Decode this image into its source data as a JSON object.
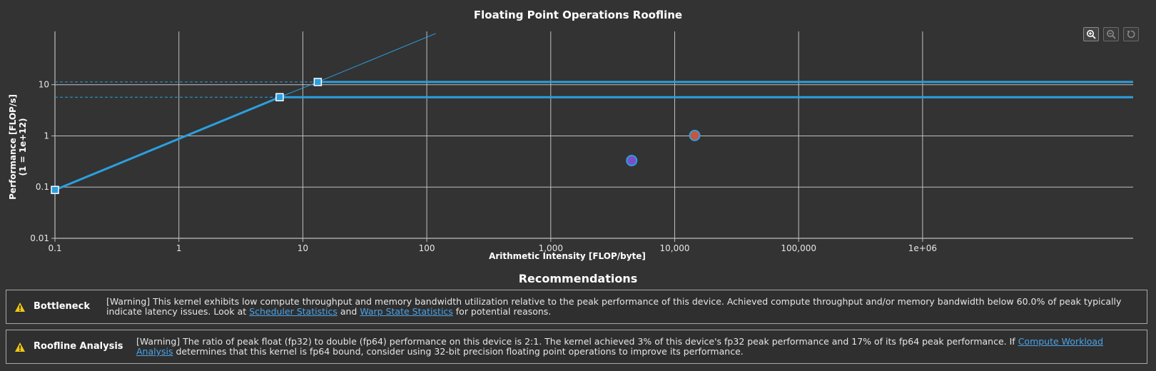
{
  "chart_data": {
    "type": "scatter",
    "title": "Floating Point Operations Roofline",
    "xlabel": "Arithmetic Intensity [FLOP/byte]",
    "ylabel": "Performance [FLOP/s]",
    "ylabel_unit": "(1 = 1e+12)",
    "x_scale": "log",
    "y_scale": "log",
    "xlim": [
      0.1,
      50000000
    ],
    "ylim": [
      0.01,
      110
    ],
    "x_ticks": [
      {
        "value": 0.1,
        "label": "0.1"
      },
      {
        "value": 1,
        "label": "1"
      },
      {
        "value": 10,
        "label": "10"
      },
      {
        "value": 100,
        "label": "100"
      },
      {
        "value": 1000,
        "label": "1,000"
      },
      {
        "value": 10000,
        "label": "10,000"
      },
      {
        "value": 100000,
        "label": "100,000"
      },
      {
        "value": 1000000,
        "label": "1e+06"
      }
    ],
    "y_ticks": [
      {
        "value": 0.01,
        "label": "0.01"
      },
      {
        "value": 0.1,
        "label": "0.1"
      },
      {
        "value": 1,
        "label": "1"
      },
      {
        "value": 10,
        "label": "10"
      }
    ],
    "grid": true,
    "roofline": {
      "color": "#2b9fe0",
      "bandwidth_points": [
        [
          0.1,
          0.088
        ],
        [
          6.5,
          5.7
        ]
      ],
      "bandwidth_extension_end": [
        118,
        100
      ],
      "ridge_points": [
        {
          "x": 6.5,
          "y": 5.7
        },
        {
          "x": 13.2,
          "y": 11.3
        }
      ],
      "ceilings": [
        {
          "y": 11.3,
          "x_start": 13.2
        },
        {
          "y": 5.7,
          "x_start": 6.5
        }
      ]
    },
    "series": [
      {
        "x": 14500,
        "y": 1.02,
        "color": "#c8553d",
        "edge": "#2b9fe0"
      },
      {
        "x": 4500,
        "y": 0.33,
        "color": "#7a4fc7",
        "edge": "#2b9fe0"
      }
    ]
  },
  "toolbar": {
    "buttons": [
      "zoom-in-icon",
      "zoom-out-icon",
      "reset-icon"
    ]
  },
  "recommendations": {
    "title": "Recommendations",
    "items": [
      {
        "label": "Bottleneck",
        "icon": "warning-icon",
        "text_before": "[Warning] This kernel exhibits low compute throughput and memory bandwidth utilization relative to the peak performance of this device. Achieved compute throughput and/or memory bandwidth below 60.0% of peak typically indicate latency issues. Look at ",
        "link1": "Scheduler Statistics",
        "text_mid": " and ",
        "link2": "Warp State Statistics",
        "text_after": " for potential reasons."
      },
      {
        "label": "Roofline Analysis",
        "icon": "warning-icon",
        "text_before": "[Warning] The ratio of peak float (fp32) to double (fp64) performance on this device is 2:1. The kernel achieved 3% of this device's fp32 peak performance and 17% of its fp64 peak performance. If ",
        "link1": "Compute Workload Analysis",
        "text_after": " determines that this kernel is fp64 bound, consider using 32-bit precision floating point operations to improve its performance."
      }
    ]
  },
  "colors": {
    "background": "#333333",
    "grid": "#bfbfbf",
    "accent": "#2b9fe0",
    "link": "#4aa3e8",
    "warning": "#f2c811"
  }
}
